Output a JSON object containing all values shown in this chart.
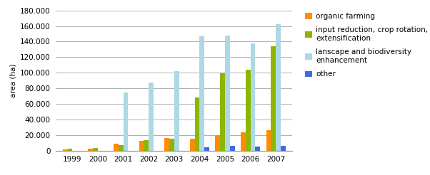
{
  "years": [
    "1999",
    "2000",
    "2001",
    "2002",
    "2003",
    "2004",
    "2005",
    "2006",
    "2007"
  ],
  "organic_farming": [
    1500,
    2500,
    9000,
    12000,
    16000,
    15000,
    20000,
    23000,
    26000
  ],
  "input_reduction": [
    2000,
    3000,
    7000,
    13000,
    15000,
    68000,
    99000,
    104000,
    134000
  ],
  "landscape_biodiversity": [
    0,
    0,
    75000,
    87000,
    102000,
    147000,
    148000,
    138000,
    162000
  ],
  "other": [
    0,
    0,
    0,
    0,
    0,
    4000,
    6000,
    5000,
    6000
  ],
  "colors": {
    "organic_farming": "#FF8C00",
    "input_reduction": "#8DB600",
    "landscape_biodiversity": "#ADD8E6",
    "other": "#4169E1"
  },
  "legend_labels": [
    "organic farming",
    "input reduction, crop rotation,\nextensification",
    "lanscape and biodiversity\nenhancement",
    "other"
  ],
  "ylabel": "area (ha)",
  "ylim": [
    0,
    180000
  ],
  "ytick_step": 20000,
  "background_color": "#ffffff",
  "grid_color": "#b0b0b0",
  "fig_width": 6.02,
  "fig_height": 2.46,
  "dpi": 100
}
